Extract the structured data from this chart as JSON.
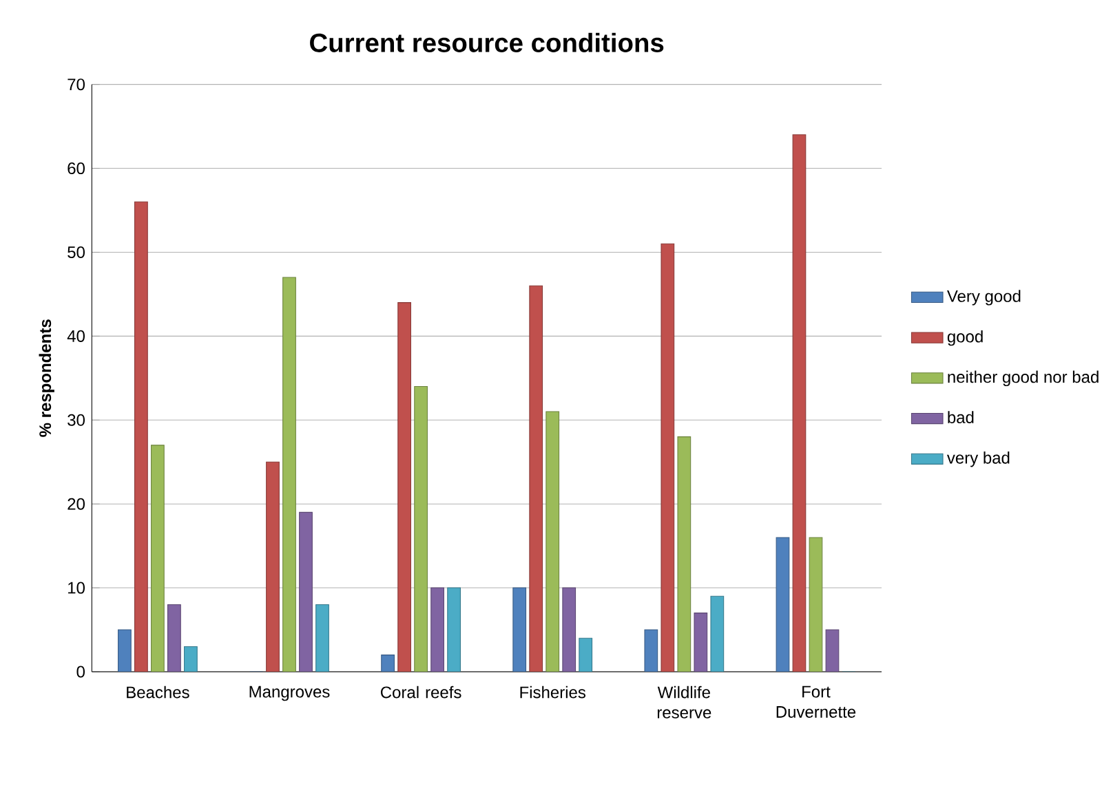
{
  "chart_data": {
    "type": "bar",
    "title": "Current resource conditions",
    "ylabel": "% respondents",
    "categories": [
      "Beaches",
      "Mangroves",
      "Coral reefs",
      "Fisheries",
      "Wildlife reserve",
      "Fort Duvernette"
    ],
    "series": [
      {
        "name": "Very good",
        "color": "#4f81bd",
        "values": [
          5,
          0,
          2,
          10,
          5,
          16
        ]
      },
      {
        "name": "good",
        "color": "#c0504d",
        "values": [
          56,
          25,
          44,
          46,
          51,
          64
        ]
      },
      {
        "name": "neither good nor bad",
        "color": "#9bbb59",
        "values": [
          27,
          47,
          34,
          31,
          28,
          16
        ]
      },
      {
        "name": "bad",
        "color": "#8064a2",
        "values": [
          8,
          19,
          10,
          10,
          7,
          5
        ]
      },
      {
        "name": "very bad",
        "color": "#4bacc6",
        "values": [
          3,
          8,
          10,
          4,
          9,
          0
        ]
      }
    ],
    "ylim": [
      0,
      70
    ],
    "yticks": [
      0,
      10,
      20,
      30,
      40,
      50,
      60,
      70
    ],
    "grid": "y",
    "legend": "right"
  }
}
